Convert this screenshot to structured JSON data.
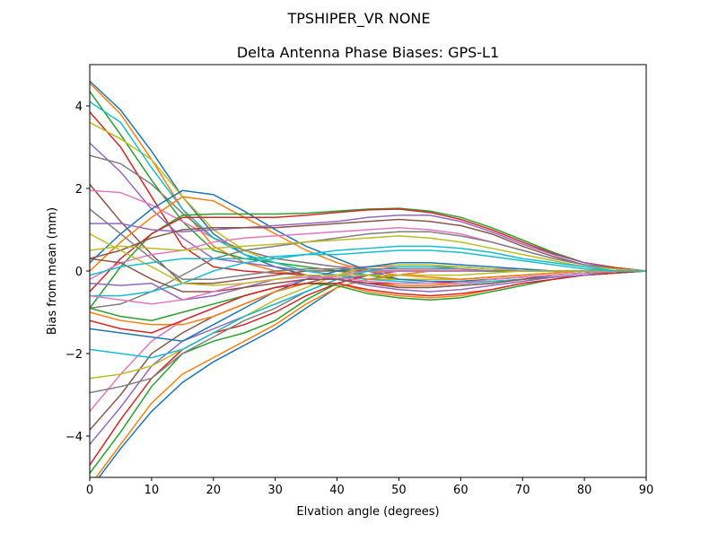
{
  "suptitle": "TPSHIPER_VR     NONE",
  "chart_data": {
    "type": "line",
    "title": "Delta Antenna Phase Biases: GPS-L1",
    "xlabel": "Elvation angle (degrees)",
    "ylabel": "Bias from mean (mm)",
    "xlim": [
      0,
      90
    ],
    "ylim": [
      -5,
      5
    ],
    "xticks": [
      0,
      10,
      20,
      30,
      40,
      50,
      60,
      70,
      80,
      90
    ],
    "yticks": [
      -4,
      -2,
      0,
      2,
      4
    ],
    "grid": false,
    "colors": [
      "#1f77b4",
      "#ff7f0e",
      "#2ca02c",
      "#d62728",
      "#9467bd",
      "#8c564b",
      "#e377c2",
      "#7f7f7f",
      "#bcbd22",
      "#17becf"
    ],
    "x": [
      0,
      5,
      10,
      15,
      20,
      25,
      30,
      35,
      40,
      45,
      50,
      55,
      60,
      65,
      70,
      75,
      80,
      85,
      90
    ],
    "series": [
      {
        "values": [
          4.6,
          3.9,
          2.9,
          1.8,
          0.9,
          0.4,
          0.1,
          -0.1,
          -0.2,
          -0.3,
          -0.4,
          -0.4,
          -0.35,
          -0.3,
          -0.2,
          -0.15,
          -0.1,
          -0.05,
          0
        ]
      },
      {
        "values": [
          4.55,
          3.8,
          2.7,
          1.5,
          0.6,
          0.2,
          0,
          -0.1,
          -0.2,
          -0.3,
          -0.35,
          -0.35,
          -0.3,
          -0.25,
          -0.2,
          -0.1,
          -0.05,
          0,
          0
        ]
      },
      {
        "values": [
          4.35,
          3.3,
          2.2,
          1.2,
          0.5,
          0.3,
          0.2,
          0.1,
          0,
          -0.1,
          -0.2,
          -0.2,
          -0.2,
          -0.15,
          -0.1,
          -0.05,
          0,
          0,
          0
        ]
      },
      {
        "values": [
          3.85,
          3.0,
          1.8,
          0.6,
          0.1,
          0,
          -0.05,
          -0.1,
          -0.2,
          -0.3,
          -0.3,
          -0.3,
          -0.25,
          -0.2,
          -0.15,
          -0.1,
          -0.05,
          0,
          0
        ]
      },
      {
        "values": [
          3.1,
          2.4,
          1.5,
          0.8,
          0.3,
          0.2,
          0.1,
          0,
          -0.1,
          -0.2,
          -0.2,
          -0.2,
          -0.2,
          -0.15,
          -0.1,
          -0.05,
          0,
          0,
          0
        ]
      },
      {
        "values": [
          2.1,
          1.2,
          0.4,
          -0.3,
          -0.3,
          -0.2,
          -0.1,
          0,
          0,
          0,
          0,
          0,
          0,
          0,
          0,
          0,
          0,
          0,
          0
        ]
      },
      {
        "values": [
          1.95,
          1.9,
          1.6,
          1.2,
          0.8,
          0.5,
          0.3,
          0.2,
          0.1,
          0.1,
          0.1,
          0.1,
          0.1,
          0.05,
          0.05,
          0,
          0,
          0,
          0
        ]
      },
      {
        "values": [
          2.8,
          2.6,
          2.1,
          1.4,
          0.8,
          0.5,
          0.3,
          0.2,
          0.1,
          0,
          0,
          0,
          0,
          0,
          0,
          0,
          0,
          0,
          0
        ]
      },
      {
        "values": [
          3.6,
          3.2,
          2.7,
          1.8,
          1.0,
          0.5,
          0.2,
          0,
          -0.1,
          -0.2,
          -0.2,
          -0.2,
          -0.2,
          -0.15,
          -0.1,
          -0.05,
          0,
          0,
          0
        ]
      },
      {
        "values": [
          4.1,
          3.6,
          2.5,
          1.5,
          0.8,
          0.4,
          0.2,
          0,
          -0.1,
          -0.2,
          -0.25,
          -0.3,
          -0.3,
          -0.25,
          -0.2,
          -0.1,
          -0.05,
          0,
          0
        ]
      },
      {
        "values": [
          0.2,
          0.9,
          1.5,
          1.95,
          1.85,
          1.45,
          1.0,
          0.6,
          0.3,
          0,
          -0.2,
          -0.25,
          -0.25,
          -0.2,
          -0.15,
          -0.1,
          -0.05,
          0,
          0
        ]
      },
      {
        "values": [
          0,
          0.7,
          1.3,
          1.8,
          1.7,
          1.3,
          0.9,
          0.5,
          0.2,
          0,
          -0.1,
          -0.15,
          -0.2,
          -0.15,
          -0.1,
          -0.05,
          0,
          0,
          0
        ]
      },
      {
        "values": [
          -0.9,
          0.1,
          0.9,
          1.35,
          1.38,
          1.38,
          1.38,
          1.4,
          1.45,
          1.5,
          1.52,
          1.45,
          1.3,
          1.05,
          0.75,
          0.45,
          0.2,
          0.08,
          0
        ]
      },
      {
        "values": [
          -0.5,
          0.3,
          0.9,
          1.3,
          1.3,
          1.3,
          1.3,
          1.35,
          1.42,
          1.48,
          1.5,
          1.42,
          1.25,
          1.0,
          0.7,
          0.42,
          0.2,
          0.08,
          0
        ]
      },
      {
        "values": [
          1.15,
          1.15,
          1.0,
          0.95,
          1.0,
          1.05,
          1.1,
          1.15,
          1.2,
          1.3,
          1.35,
          1.35,
          1.2,
          0.95,
          0.65,
          0.4,
          0.2,
          0.05,
          0
        ]
      },
      {
        "values": [
          0.3,
          0.5,
          0.8,
          1.0,
          1.05,
          1.05,
          1.05,
          1.1,
          1.15,
          1.2,
          1.25,
          1.2,
          1.1,
          0.9,
          0.6,
          0.35,
          0.15,
          0.05,
          0
        ]
      },
      {
        "values": [
          -0.2,
          0.2,
          0.4,
          0.5,
          0.7,
          0.8,
          0.85,
          0.9,
          0.95,
          1.0,
          1.05,
          1.0,
          0.9,
          0.7,
          0.5,
          0.3,
          0.15,
          0.05,
          0
        ]
      },
      {
        "values": [
          -0.9,
          -0.8,
          -0.5,
          -0.1,
          0.3,
          0.5,
          0.6,
          0.7,
          0.8,
          0.9,
          0.95,
          0.95,
          0.85,
          0.7,
          0.5,
          0.3,
          0.15,
          0.05,
          0
        ]
      },
      {
        "values": [
          0.5,
          0.6,
          0.55,
          0.5,
          0.55,
          0.6,
          0.65,
          0.7,
          0.75,
          0.8,
          0.85,
          0.8,
          0.7,
          0.55,
          0.4,
          0.25,
          0.1,
          0.05,
          0
        ]
      },
      {
        "values": [
          -0.6,
          -0.6,
          -0.5,
          -0.3,
          0,
          0.2,
          0.3,
          0.4,
          0.5,
          0.55,
          0.6,
          0.6,
          0.55,
          0.45,
          0.3,
          0.2,
          0.1,
          0,
          0
        ]
      },
      {
        "values": [
          -5.3,
          -4.3,
          -3.4,
          -2.7,
          -2.2,
          -1.8,
          -1.4,
          -0.9,
          -0.4,
          -0.2,
          -0.1,
          0,
          0,
          0,
          0,
          0,
          0,
          0,
          0
        ]
      },
      {
        "values": [
          -5.2,
          -4.2,
          -3.2,
          -2.5,
          -2.1,
          -1.7,
          -1.3,
          -0.8,
          -0.4,
          -0.2,
          -0.1,
          0,
          0,
          0,
          0,
          0,
          0,
          0,
          0
        ]
      },
      {
        "values": [
          -4.9,
          -3.9,
          -2.8,
          -2.0,
          -1.7,
          -1.5,
          -1.2,
          -0.7,
          -0.3,
          -0.1,
          0,
          0,
          0,
          0,
          0,
          0,
          0,
          0,
          0
        ]
      },
      {
        "values": [
          -4.7,
          -3.6,
          -2.6,
          -1.9,
          -1.5,
          -1.3,
          -1.0,
          -0.6,
          -0.3,
          -0.1,
          0,
          0,
          0,
          0,
          0,
          0,
          0,
          0,
          0
        ]
      },
      {
        "values": [
          -4.2,
          -3.3,
          -2.3,
          -1.7,
          -1.4,
          -1.1,
          -0.8,
          -0.5,
          -0.2,
          -0.1,
          0,
          0,
          0,
          0,
          0,
          0,
          0,
          0,
          0
        ]
      },
      {
        "values": [
          -3.85,
          -3.0,
          -2.0,
          -1.5,
          -1.1,
          -0.8,
          -0.5,
          -0.3,
          -0.1,
          0,
          0,
          0,
          0,
          0,
          0,
          0,
          0,
          0,
          0
        ]
      },
      {
        "values": [
          -3.4,
          -2.5,
          -1.7,
          -1.2,
          -0.9,
          -0.6,
          -0.4,
          -0.2,
          -0.1,
          0,
          0,
          0,
          0,
          0,
          0,
          0,
          0,
          0,
          0
        ]
      },
      {
        "values": [
          -2.95,
          -2.8,
          -2.6,
          -2.0,
          -1.6,
          -1.2,
          -0.9,
          -0.5,
          -0.2,
          0,
          0.1,
          0.1,
          0.1,
          0.05,
          0,
          0,
          0,
          0,
          0
        ]
      },
      {
        "values": [
          -2.6,
          -2.5,
          -2.3,
          -1.9,
          -1.5,
          -1.1,
          -0.7,
          -0.4,
          -0.1,
          0.1,
          0.15,
          0.15,
          0.1,
          0.05,
          0,
          0,
          0,
          0,
          0
        ]
      },
      {
        "values": [
          -1.9,
          -2.0,
          -2.1,
          -1.9,
          -1.5,
          -1.1,
          -0.8,
          -0.5,
          -0.2,
          0,
          0.1,
          0.1,
          0.05,
          0,
          0,
          0,
          0,
          0,
          0
        ]
      },
      {
        "values": [
          -1.4,
          -1.5,
          -1.6,
          -1.7,
          -1.3,
          -0.9,
          -0.5,
          -0.2,
          0,
          0.1,
          0.2,
          0.2,
          0.15,
          0.1,
          0.05,
          0,
          0,
          0,
          0
        ]
      },
      {
        "values": [
          -1.0,
          -1.2,
          -1.3,
          -1.3,
          -1.1,
          -0.8,
          -0.5,
          -0.3,
          -0.3,
          -0.5,
          -0.6,
          -0.65,
          -0.6,
          -0.45,
          -0.3,
          -0.2,
          -0.1,
          -0.05,
          0
        ]
      },
      {
        "values": [
          -0.9,
          -1.1,
          -1.2,
          -1.0,
          -0.8,
          -0.6,
          -0.4,
          -0.3,
          -0.35,
          -0.55,
          -0.65,
          -0.7,
          -0.65,
          -0.5,
          -0.35,
          -0.2,
          -0.1,
          -0.05,
          0
        ]
      },
      {
        "values": [
          -1.2,
          -1.4,
          -1.5,
          -1.2,
          -0.9,
          -0.6,
          -0.4,
          -0.3,
          -0.3,
          -0.45,
          -0.55,
          -0.6,
          -0.55,
          -0.45,
          -0.3,
          -0.2,
          -0.1,
          -0.05,
          0
        ]
      },
      {
        "values": [
          -0.3,
          -0.35,
          -0.3,
          -0.7,
          -0.6,
          -0.4,
          -0.2,
          -0.1,
          -0.2,
          -0.35,
          -0.45,
          -0.5,
          -0.45,
          -0.35,
          -0.25,
          -0.15,
          -0.1,
          0,
          0
        ]
      },
      {
        "values": [
          0.3,
          0.2,
          -0.2,
          -0.5,
          -0.5,
          -0.4,
          -0.3,
          -0.2,
          -0.2,
          -0.3,
          -0.4,
          -0.4,
          -0.35,
          -0.3,
          -0.2,
          -0.1,
          -0.05,
          0,
          0
        ]
      },
      {
        "values": [
          -0.6,
          -0.7,
          -0.8,
          -0.7,
          -0.5,
          -0.3,
          -0.2,
          -0.15,
          -0.15,
          -0.25,
          -0.3,
          -0.3,
          -0.3,
          -0.2,
          -0.15,
          -0.1,
          -0.05,
          0,
          0
        ]
      },
      {
        "values": [
          1.5,
          0.9,
          0.3,
          -0.2,
          -0.2,
          -0.1,
          0,
          0.05,
          0.05,
          0.05,
          0.05,
          0.05,
          0.05,
          0,
          0,
          0,
          0,
          0,
          0
        ]
      },
      {
        "values": [
          0.9,
          0.5,
          0.1,
          -0.3,
          -0.35,
          -0.3,
          -0.2,
          -0.1,
          -0.1,
          -0.1,
          -0.1,
          -0.1,
          -0.1,
          -0.05,
          0,
          0,
          0,
          0,
          0
        ]
      },
      {
        "values": [
          -0.1,
          0.1,
          0.2,
          0.3,
          0.3,
          0.3,
          0.35,
          0.4,
          0.4,
          0.45,
          0.5,
          0.5,
          0.45,
          0.35,
          0.25,
          0.15,
          0.05,
          0,
          0
        ]
      }
    ]
  }
}
